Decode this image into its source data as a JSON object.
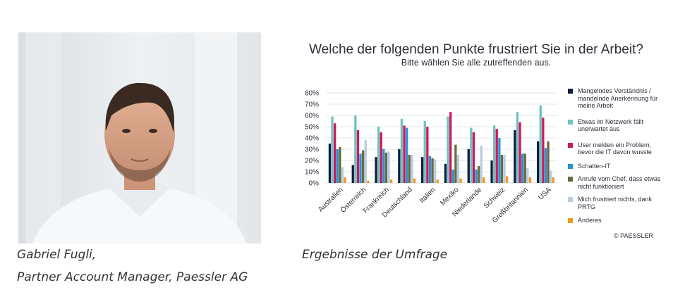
{
  "person": {
    "name": "Gabriel Fugli,",
    "role": "Partner Account Manager, Paessler AG"
  },
  "chart_caption": "Ergebnisse der Umfrage",
  "copyright": "© PAESSLER",
  "chart_data": {
    "type": "bar",
    "title": "Welche der folgenden Punkte frustriert Sie in der Arbeit?",
    "subtitle": "Bitte wählen Sie alle zutreffenden aus.",
    "categories": [
      "Australien",
      "Österreich",
      "Frankreich",
      "Deutschland",
      "Italien",
      "Mexiko",
      "Niederlande",
      "Schweiz",
      "Großbritannien",
      "USA"
    ],
    "ylim": [
      0,
      80
    ],
    "yticks": [
      "0%",
      "10%",
      "20%",
      "30%",
      "40%",
      "50%",
      "60%",
      "70%",
      "80%"
    ],
    "grid": true,
    "legend_position": "right",
    "series": [
      {
        "name": "Mangelndes Verständnis / mandelnde Anerkennung für meine Arbeit",
        "color": "#0f1f3d",
        "values": [
          35,
          16,
          23,
          30,
          23,
          17,
          30,
          20,
          47,
          37
        ]
      },
      {
        "name": "Etwas im Netzwerk fällt unerwartet aus",
        "color": "#6cc3bf",
        "values": [
          59,
          60,
          50,
          57,
          55,
          59,
          49,
          51,
          63,
          69
        ]
      },
      {
        "name": "User melden ein Problem, bevor die IT davon wusste",
        "color": "#d1175f",
        "values": [
          53,
          47,
          45,
          51,
          50,
          63,
          45,
          48,
          54,
          58
        ]
      },
      {
        "name": "Schatten-IT",
        "color": "#2b93d3",
        "values": [
          30,
          26,
          30,
          49,
          24,
          12,
          12,
          40,
          26,
          31
        ]
      },
      {
        "name": "Anrufe vom Chef, dass etwas nicht funktioniert",
        "color": "#6c6a3a",
        "values": [
          32,
          29,
          27,
          25,
          22,
          34,
          15,
          25,
          26,
          37
        ]
      },
      {
        "name": "Mich frustriert nichts, dank PRTG",
        "color": "#b7cde6",
        "values": [
          14,
          38,
          28,
          25,
          21,
          25,
          33,
          25,
          13,
          11
        ]
      },
      {
        "name": "Anderes",
        "color": "#f09a1d",
        "values": [
          5,
          2,
          3,
          4,
          3,
          4,
          5,
          6,
          5,
          5
        ]
      }
    ]
  }
}
